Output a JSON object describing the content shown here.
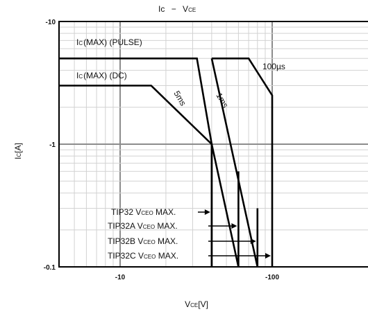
{
  "chart_data": {
    "type": "line",
    "title": {
      "main": "Ic",
      "dash": "−",
      "v": "V",
      "sub": "CE"
    },
    "xlabel": {
      "v": "V",
      "sub": "CE",
      "unit": "[V]"
    },
    "ylabel": {
      "i": "I",
      "sub": "C",
      "unit": "[A]"
    },
    "x_scale": "log",
    "y_scale": "log",
    "xlim": [
      4,
      180
    ],
    "ylim": [
      0.1,
      10
    ],
    "x_ticks": [
      {
        "value": 10,
        "label": "-10"
      },
      {
        "value": 100,
        "label": "-100"
      }
    ],
    "y_ticks": [
      {
        "value": 10,
        "label": "-10"
      },
      {
        "value": 1,
        "label": "-1"
      },
      {
        "value": 0.1,
        "label": "-0.1"
      }
    ],
    "grid": true,
    "series": [
      {
        "name": "DC",
        "points": [
          [
            4,
            3
          ],
          [
            16,
            3
          ],
          [
            40,
            1
          ],
          [
            40,
            0.1
          ]
        ]
      },
      {
        "name": "5ms",
        "points": [
          [
            4,
            5
          ],
          [
            32,
            5
          ],
          [
            40,
            1
          ],
          [
            60,
            0.1
          ]
        ]
      },
      {
        "name": "1ms",
        "points": [
          [
            40,
            5
          ],
          [
            80,
            0.1
          ]
        ]
      },
      {
        "name": "100µs",
        "points": [
          [
            40,
            5
          ],
          [
            70,
            5
          ],
          [
            100,
            2.5
          ],
          [
            100,
            0.1
          ]
        ]
      },
      {
        "name": "TIP32 limit",
        "points": [
          [
            40,
            0.1
          ],
          [
            40,
            1
          ]
        ]
      },
      {
        "name": "TIP32A limit",
        "points": [
          [
            60,
            0.1
          ],
          [
            60,
            0.6
          ]
        ]
      },
      {
        "name": "TIP32B limit",
        "points": [
          [
            80,
            0.1
          ],
          [
            80,
            0.3
          ]
        ]
      }
    ],
    "annotations": {
      "ic_pulse": {
        "i": "I",
        "sub": "C",
        "text": "(MAX) (PULSE)"
      },
      "ic_dc": {
        "i": "I",
        "sub": "C",
        "text": "(MAX) (DC)"
      },
      "t_100us": "100µs",
      "t_5ms": "5ms",
      "t_1ms": "1ms",
      "vceo": [
        {
          "part": "TIP32",
          "v": "V",
          "sub": "CEO",
          "max": "MAX.",
          "arrow_to": 40
        },
        {
          "part": "TIP32A",
          "v": "V",
          "sub": "CEO",
          "max": "MAX.",
          "arrow_to": 60
        },
        {
          "part": "TIP32B",
          "v": "V",
          "sub": "CEO",
          "max": "MAX.",
          "arrow_to": 80
        },
        {
          "part": "TIP32C",
          "v": "V",
          "sub": "CEO",
          "max": "MAX.",
          "arrow_to": 100
        }
      ]
    }
  }
}
